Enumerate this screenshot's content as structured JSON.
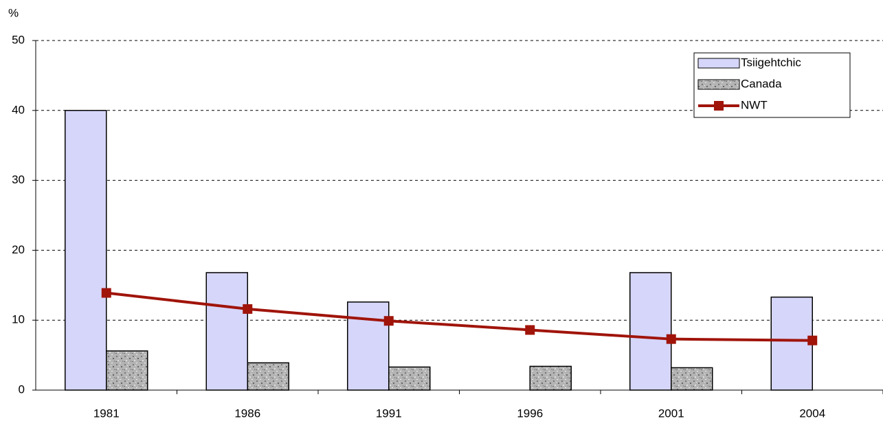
{
  "chart_data": {
    "type": "bar",
    "y_label": "%",
    "categories": [
      "1981",
      "1986",
      "1991",
      "1996",
      "2001",
      "2004"
    ],
    "series": [
      {
        "name": "Tsiigehtchic",
        "type": "bar",
        "color": "#d6d6fa",
        "values": [
          40,
          16.8,
          12.6,
          null,
          16.8,
          13.3
        ]
      },
      {
        "name": "Canada",
        "type": "bar",
        "color": "#b4b4b4",
        "values": [
          5.6,
          3.9,
          3.3,
          3.4,
          3.2,
          null
        ]
      },
      {
        "name": "NWT",
        "type": "line",
        "color": "#a0140a",
        "values": [
          13.9,
          11.6,
          9.9,
          8.6,
          7.3,
          7.1
        ]
      }
    ],
    "ylim": [
      0,
      50
    ],
    "yticks": [
      0,
      10,
      20,
      30,
      40,
      50
    ],
    "grid": true,
    "legend": "upper right"
  }
}
